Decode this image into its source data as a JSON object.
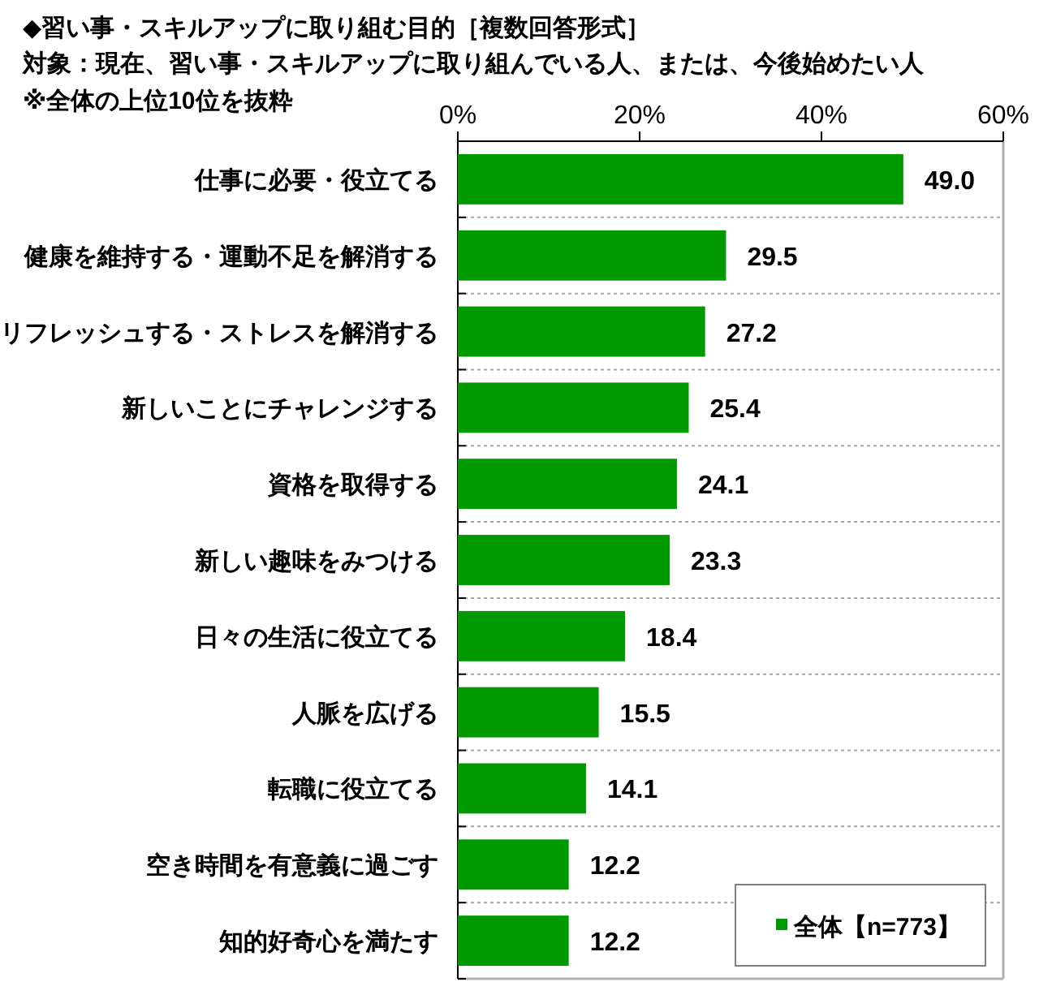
{
  "chart_data": {
    "type": "bar",
    "orientation": "horizontal",
    "title": "◆習い事・スキルアップに取り組む目的［複数回答形式］",
    "subtitle": "対象：現在、習い事・スキルアップに取り組んでいる人、または、今後始めたい人",
    "annotations": [
      "※全体の上位10位を抜粋"
    ],
    "categories": [
      "仕事に必要・役立てる",
      "健康を維持する・運動不足を解消する",
      "リフレッシュする・ストレスを解消する",
      "新しいことにチャレンジする",
      "資格を取得する",
      "新しい趣味をみつける",
      "日々の生活に役立てる",
      "人脈を広げる",
      "転職に役立てる",
      "空き時間を有意義に過ごす",
      "知的好奇心を満たす"
    ],
    "series": [
      {
        "name": "全体【n=773】",
        "color": "#009a00",
        "values": [
          49.0,
          29.5,
          27.2,
          25.4,
          24.1,
          23.3,
          18.4,
          15.5,
          14.1,
          12.2,
          12.2
        ],
        "value_labels": [
          "49.0",
          "29.5",
          "27.2",
          "25.4",
          "24.1",
          "23.3",
          "18.4",
          "15.5",
          "14.1",
          "12.2",
          "12.2"
        ]
      }
    ],
    "xlim": [
      0,
      60
    ],
    "xticks": [
      {
        "value": 0,
        "label": "0%"
      },
      {
        "value": 20,
        "label": "20%"
      },
      {
        "value": 40,
        "label": "40%"
      },
      {
        "value": 60,
        "label": "60%"
      }
    ],
    "grid": "y",
    "legend": "bottom right"
  }
}
